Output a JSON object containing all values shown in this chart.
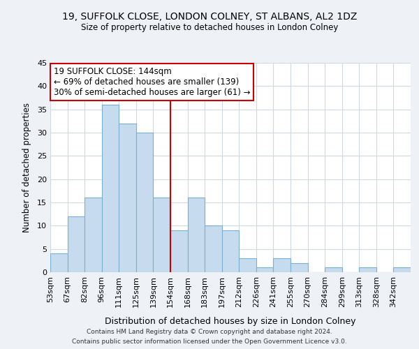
{
  "title": "19, SUFFOLK CLOSE, LONDON COLNEY, ST ALBANS, AL2 1DZ",
  "subtitle": "Size of property relative to detached houses in London Colney",
  "xlabel": "Distribution of detached houses by size in London Colney",
  "ylabel": "Number of detached properties",
  "bin_labels": [
    "53sqm",
    "67sqm",
    "82sqm",
    "96sqm",
    "111sqm",
    "125sqm",
    "139sqm",
    "154sqm",
    "168sqm",
    "183sqm",
    "197sqm",
    "212sqm",
    "226sqm",
    "241sqm",
    "255sqm",
    "270sqm",
    "284sqm",
    "299sqm",
    "313sqm",
    "328sqm",
    "342sqm"
  ],
  "bar_heights": [
    4,
    12,
    16,
    36,
    32,
    30,
    16,
    9,
    16,
    10,
    9,
    3,
    1,
    3,
    2,
    0,
    1,
    0,
    1,
    0,
    1
  ],
  "bar_color": "#c6dcee",
  "bar_edge_color": "#7aafd4",
  "property_line_x": 7,
  "property_line_color": "#cc0000",
  "annotation_title": "19 SUFFOLK CLOSE: 144sqm",
  "annotation_line1": "← 69% of detached houses are smaller (139)",
  "annotation_line2": "30% of semi-detached houses are larger (61) →",
  "annotation_box_edge": "#cc0000",
  "ylim": [
    0,
    45
  ],
  "yticks": [
    0,
    5,
    10,
    15,
    20,
    25,
    30,
    35,
    40,
    45
  ],
  "footer1": "Contains HM Land Registry data © Crown copyright and database right 2024.",
  "footer2": "Contains public sector information licensed under the Open Government Licence v3.0.",
  "background_color": "#eef2f7",
  "plot_bg_color": "#ffffff",
  "grid_color": "#d0d8e0"
}
